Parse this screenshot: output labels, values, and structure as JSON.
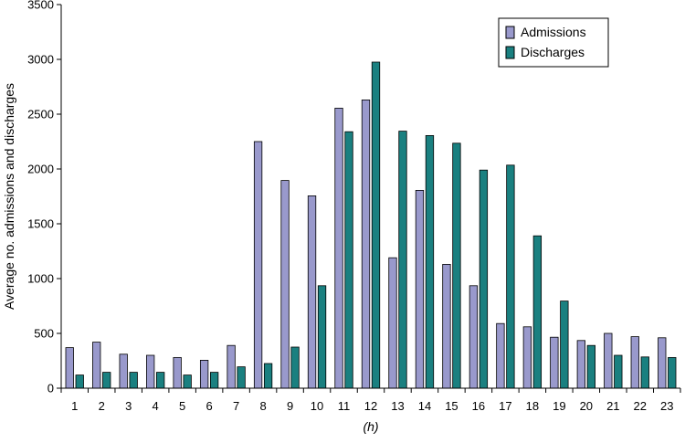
{
  "chart_data": {
    "type": "bar",
    "xlabel": "(h)",
    "ylabel": "Average no. admissions and discharges",
    "ylim": [
      0,
      3500
    ],
    "yticks": [
      0,
      500,
      1000,
      1500,
      2000,
      2500,
      3000,
      3500
    ],
    "grid": false,
    "legend_position": "top-right",
    "categories": [
      "1",
      "2",
      "3",
      "4",
      "5",
      "6",
      "7",
      "8",
      "9",
      "10",
      "11",
      "12",
      "13",
      "14",
      "15",
      "16",
      "17",
      "18",
      "19",
      "20",
      "21",
      "22",
      "23"
    ],
    "series": [
      {
        "name": "Admissions",
        "color": "#9999cc",
        "values": [
          370,
          420,
          310,
          300,
          280,
          255,
          390,
          2250,
          1895,
          1755,
          2555,
          2630,
          1190,
          1805,
          1130,
          935,
          590,
          560,
          465,
          435,
          500,
          470,
          460
        ]
      },
      {
        "name": "Discharges",
        "color": "#1a8080",
        "values": [
          120,
          145,
          145,
          145,
          120,
          145,
          195,
          225,
          375,
          935,
          2340,
          2975,
          2345,
          2305,
          2235,
          1990,
          2035,
          1390,
          795,
          390,
          300,
          285,
          280
        ]
      }
    ]
  }
}
